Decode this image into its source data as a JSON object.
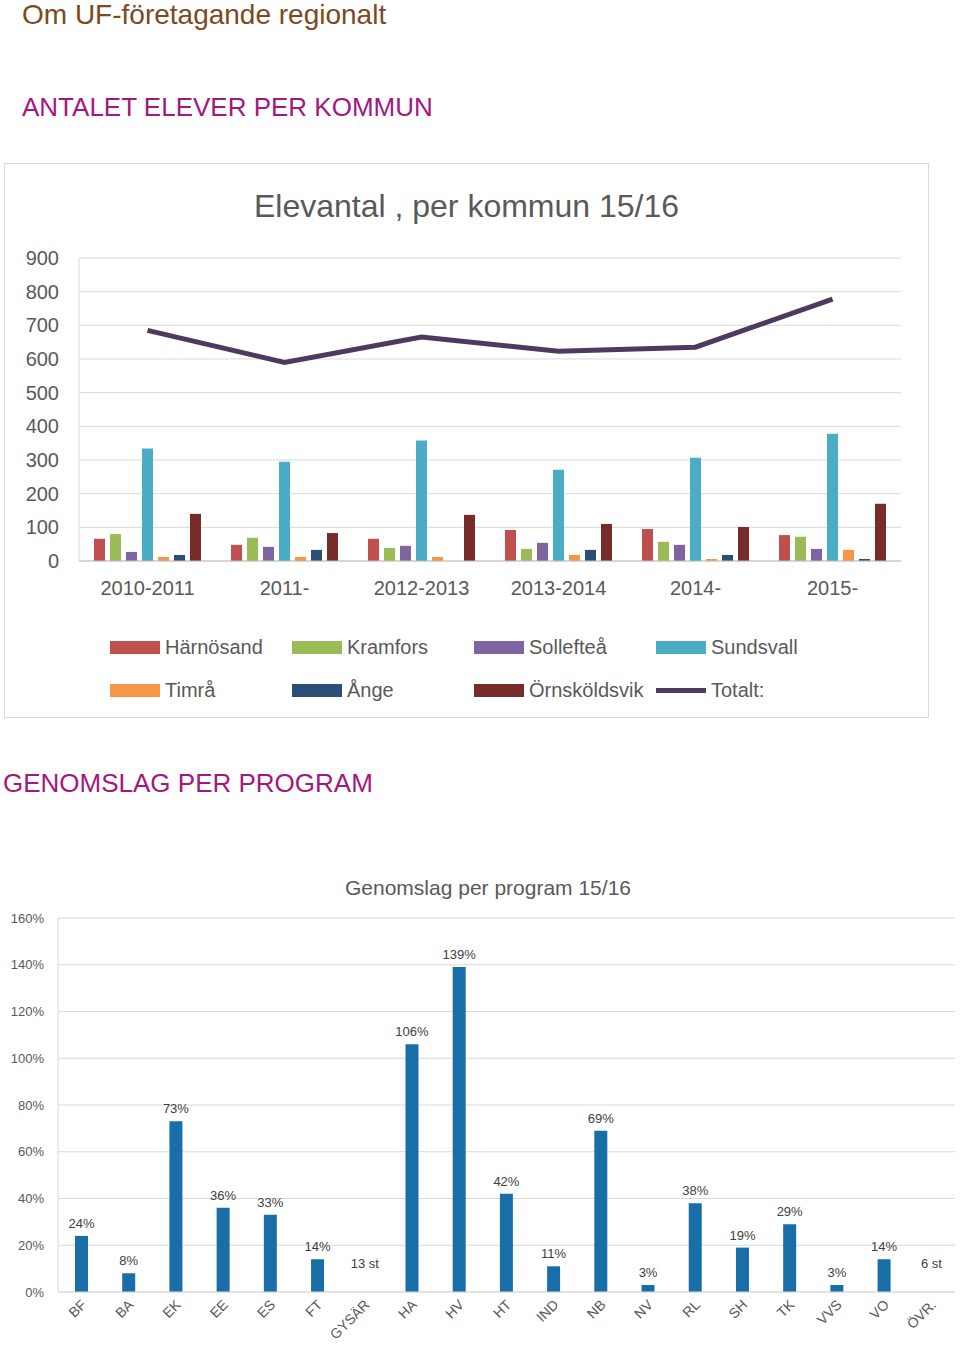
{
  "title": "Om UF-företagande regionalt",
  "chart_data": [
    {
      "type": "bar",
      "heading": "ANTALET ELEVER PER KOMMUN",
      "title": "Elevantal , per kommun 15/16",
      "categories": [
        "2010-2011",
        "2011-",
        "2012-2013",
        "2013-2014",
        "2014-",
        "2015-"
      ],
      "series": [
        {
          "name": "Härnösand",
          "color": "#c0504d",
          "values": [
            66,
            48,
            66,
            92,
            95,
            77
          ]
        },
        {
          "name": "Kramfors",
          "color": "#9bbb59",
          "values": [
            80,
            69,
            39,
            36,
            57,
            72
          ]
        },
        {
          "name": "Sollefteå",
          "color": "#8064a2",
          "values": [
            27,
            42,
            45,
            54,
            48,
            36
          ]
        },
        {
          "name": "Sundsvall",
          "color": "#4bacc6",
          "values": [
            334,
            295,
            358,
            271,
            307,
            378
          ]
        },
        {
          "name": "Timrå",
          "color": "#f79646",
          "values": [
            12,
            12,
            12,
            18,
            6,
            33
          ]
        },
        {
          "name": "Ånge",
          "color": "#2c4d75",
          "values": [
            18,
            33,
            0,
            33,
            18,
            6
          ]
        },
        {
          "name": "Örnsköldsvik",
          "color": "#772c2a",
          "values": [
            140,
            83,
            137,
            110,
            101,
            170
          ]
        },
        {
          "name": "Totalt:",
          "type": "line",
          "color": "#4e3a5e",
          "values": [
            685,
            590,
            665,
            623,
            635,
            778
          ]
        }
      ],
      "ylim": [
        0,
        900
      ],
      "yticks": [
        0,
        100,
        200,
        300,
        400,
        500,
        600,
        700,
        800,
        900
      ],
      "grid": true,
      "legend": "bottom"
    },
    {
      "type": "bar",
      "heading": "GENOMSLAG PER PROGRAM",
      "title": "Genomslag per program 15/16",
      "categories": [
        "BF",
        "BA",
        "EK",
        "EE",
        "ES",
        "FT",
        "GYSÄR",
        "HA",
        "HV",
        "HT",
        "IND",
        "NB",
        "NV",
        "RL",
        "SH",
        "TK",
        "VVS",
        "VO",
        "ÖVR."
      ],
      "values": [
        24,
        8,
        73,
        36,
        33,
        14,
        null,
        106,
        139,
        42,
        11,
        69,
        3,
        38,
        19,
        29,
        3,
        14,
        null
      ],
      "value_labels": [
        "24%",
        "8%",
        "73%",
        "36%",
        "33%",
        "14%",
        null,
        "106%",
        "139%",
        "42%",
        "11%",
        "69%",
        "3%",
        "38%",
        "19%",
        "29%",
        "3%",
        "14%",
        null
      ],
      "color": "#1a6ea8",
      "ylim": [
        0,
        160
      ],
      "yticks": [
        {
          "value": 0,
          "label": "0%"
        },
        {
          "value": 20,
          "label": "20%"
        },
        {
          "value": 40,
          "label": "40%"
        },
        {
          "value": 60,
          "label": "60%"
        },
        {
          "value": 80,
          "label": "80%"
        },
        {
          "value": 100,
          "label": "100%"
        },
        {
          "value": 120,
          "label": "120%"
        },
        {
          "value": 140,
          "label": "140%"
        },
        {
          "value": 160,
          "label": "160%"
        }
      ],
      "grid": true,
      "data_labels": true,
      "annotations": [
        {
          "category": "GYSÄR",
          "text": "13 st"
        },
        {
          "category": "ÖVR.",
          "text": "6 st"
        }
      ]
    }
  ]
}
